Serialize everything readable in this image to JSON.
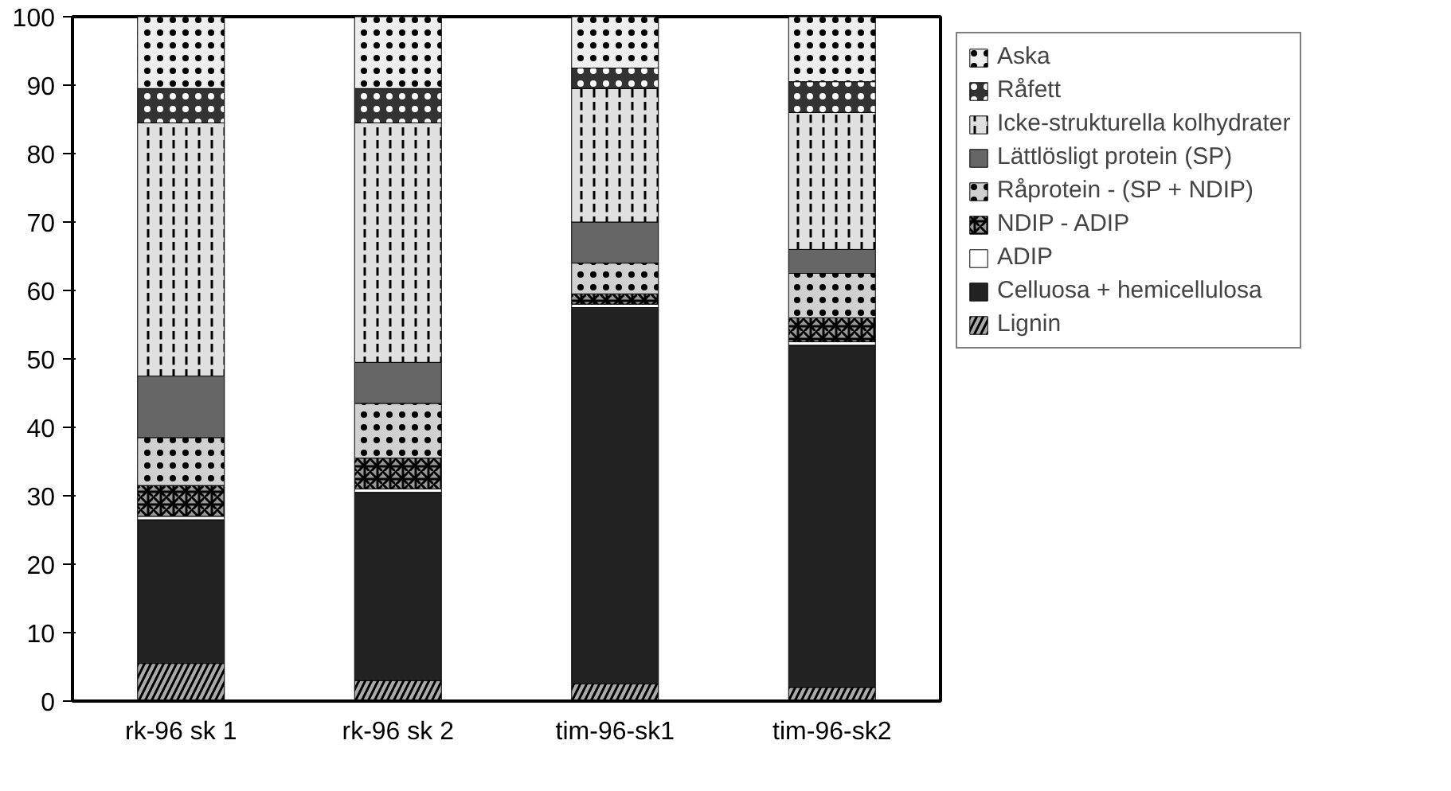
{
  "chart_data": {
    "type": "bar",
    "stacked": true,
    "categories": [
      "rk-96 sk 1",
      "rk-96 sk 2",
      "tim-96-sk1",
      "tim-96-sk2"
    ],
    "ylim": [
      0,
      100
    ],
    "yticks": [
      0,
      10,
      20,
      30,
      40,
      50,
      60,
      70,
      80,
      90,
      100
    ],
    "grid": false,
    "legend": "right",
    "series": [
      {
        "name": "Lignin",
        "color": "#aaaaaa",
        "values": [
          5.5,
          3,
          2.5,
          2
        ]
      },
      {
        "name": "Celluosa + hemicellulosa",
        "color": "#222222",
        "values": [
          21,
          27.5,
          55,
          50
        ]
      },
      {
        "name": "ADIP",
        "color": "#ffffff",
        "values": [
          0.5,
          0.5,
          0.5,
          0.5
        ]
      },
      {
        "name": "NDIP - ADIP",
        "color": "#999999",
        "values": [
          4.5,
          4.5,
          1.5,
          3.5
        ]
      },
      {
        "name": "Råprotein - (SP + NDIP)",
        "color": "#d0d0d0",
        "values": [
          7,
          8,
          4.5,
          6.5
        ]
      },
      {
        "name": "Lättlösligt protein (SP)",
        "color": "#666666",
        "values": [
          9,
          6,
          6,
          3.5
        ]
      },
      {
        "name": "Icke-strukturella kolhydrater",
        "color": "#e0e0e0",
        "values": [
          37,
          35,
          19.5,
          20
        ]
      },
      {
        "name": "Råfett",
        "color": "#333333",
        "values": [
          5,
          5,
          3,
          4.5
        ]
      },
      {
        "name": "Aska",
        "color": "#eeeeee",
        "values": [
          10.5,
          10.5,
          7.5,
          9.5
        ]
      }
    ]
  }
}
